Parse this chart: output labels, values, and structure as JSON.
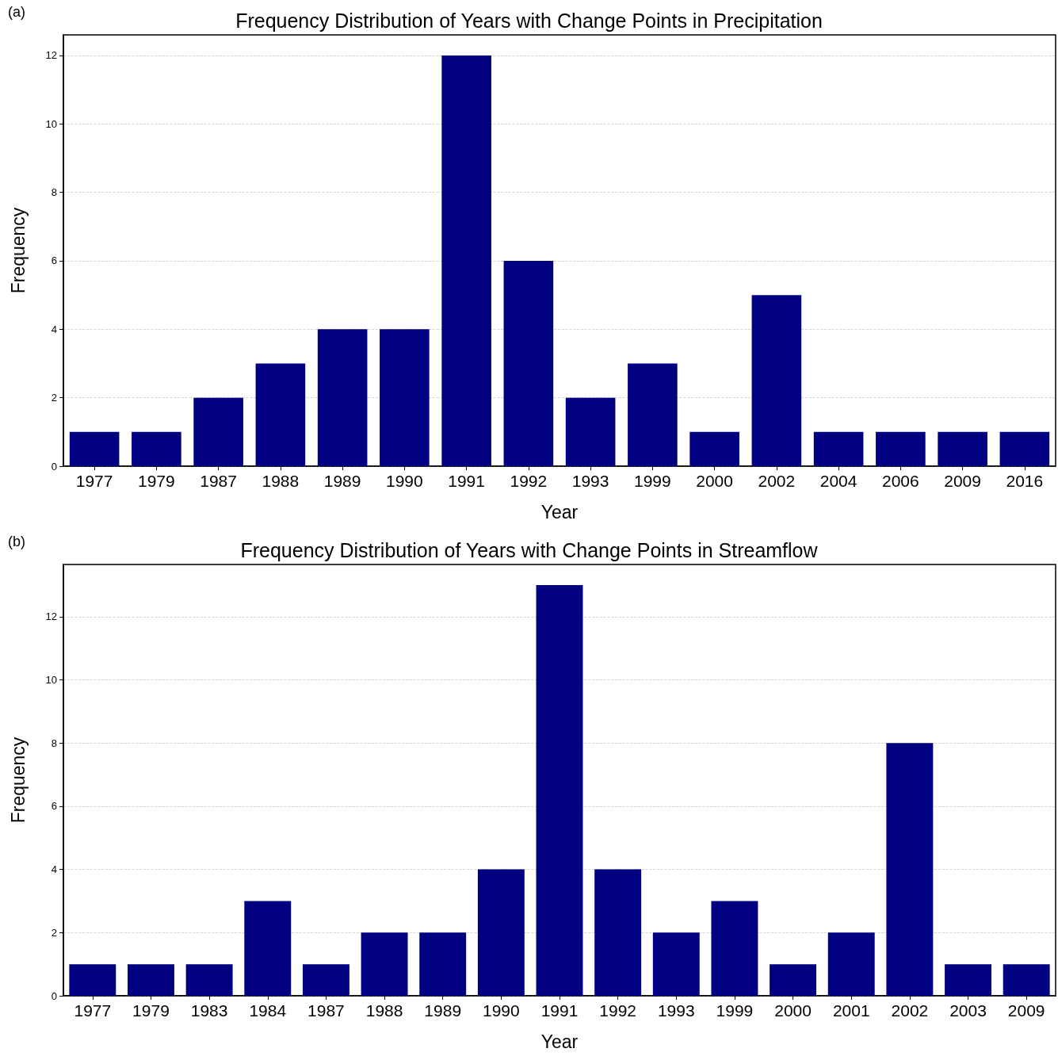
{
  "chart_data": [
    {
      "type": "bar",
      "title": "Frequency Distribution of Years with Change Points in Precipitation",
      "xlabel": "Year",
      "ylabel": "Frequency",
      "annotations": [
        "(a)"
      ],
      "categories": [
        "1977",
        "1979",
        "1987",
        "1988",
        "1989",
        "1990",
        "1991",
        "1992",
        "1993",
        "1999",
        "2000",
        "2002",
        "2004",
        "2006",
        "2009",
        "2016"
      ],
      "values": [
        1,
        1,
        2,
        3,
        4,
        4,
        12,
        6,
        2,
        3,
        1,
        5,
        1,
        1,
        1,
        1
      ],
      "color": "#000080",
      "ylim": [
        0,
        12.6
      ],
      "yticks": [
        0,
        2,
        4,
        6,
        8,
        10,
        12
      ],
      "grid": "y"
    },
    {
      "type": "bar",
      "title": "Frequency Distribution of Years with Change Points in Streamflow",
      "xlabel": "Year",
      "ylabel": "Frequency",
      "annotations": [
        "(b)"
      ],
      "categories": [
        "1977",
        "1979",
        "1983",
        "1984",
        "1987",
        "1988",
        "1989",
        "1990",
        "1991",
        "1992",
        "1993",
        "1999",
        "2000",
        "2001",
        "2002",
        "2003",
        "2009"
      ],
      "values": [
        1,
        1,
        1,
        3,
        1,
        2,
        2,
        4,
        13,
        4,
        2,
        3,
        1,
        2,
        8,
        1,
        1
      ],
      "color": "#000080",
      "ylim": [
        0,
        13.65
      ],
      "yticks": [
        0,
        2,
        4,
        6,
        8,
        10,
        12
      ],
      "grid": "y"
    }
  ]
}
